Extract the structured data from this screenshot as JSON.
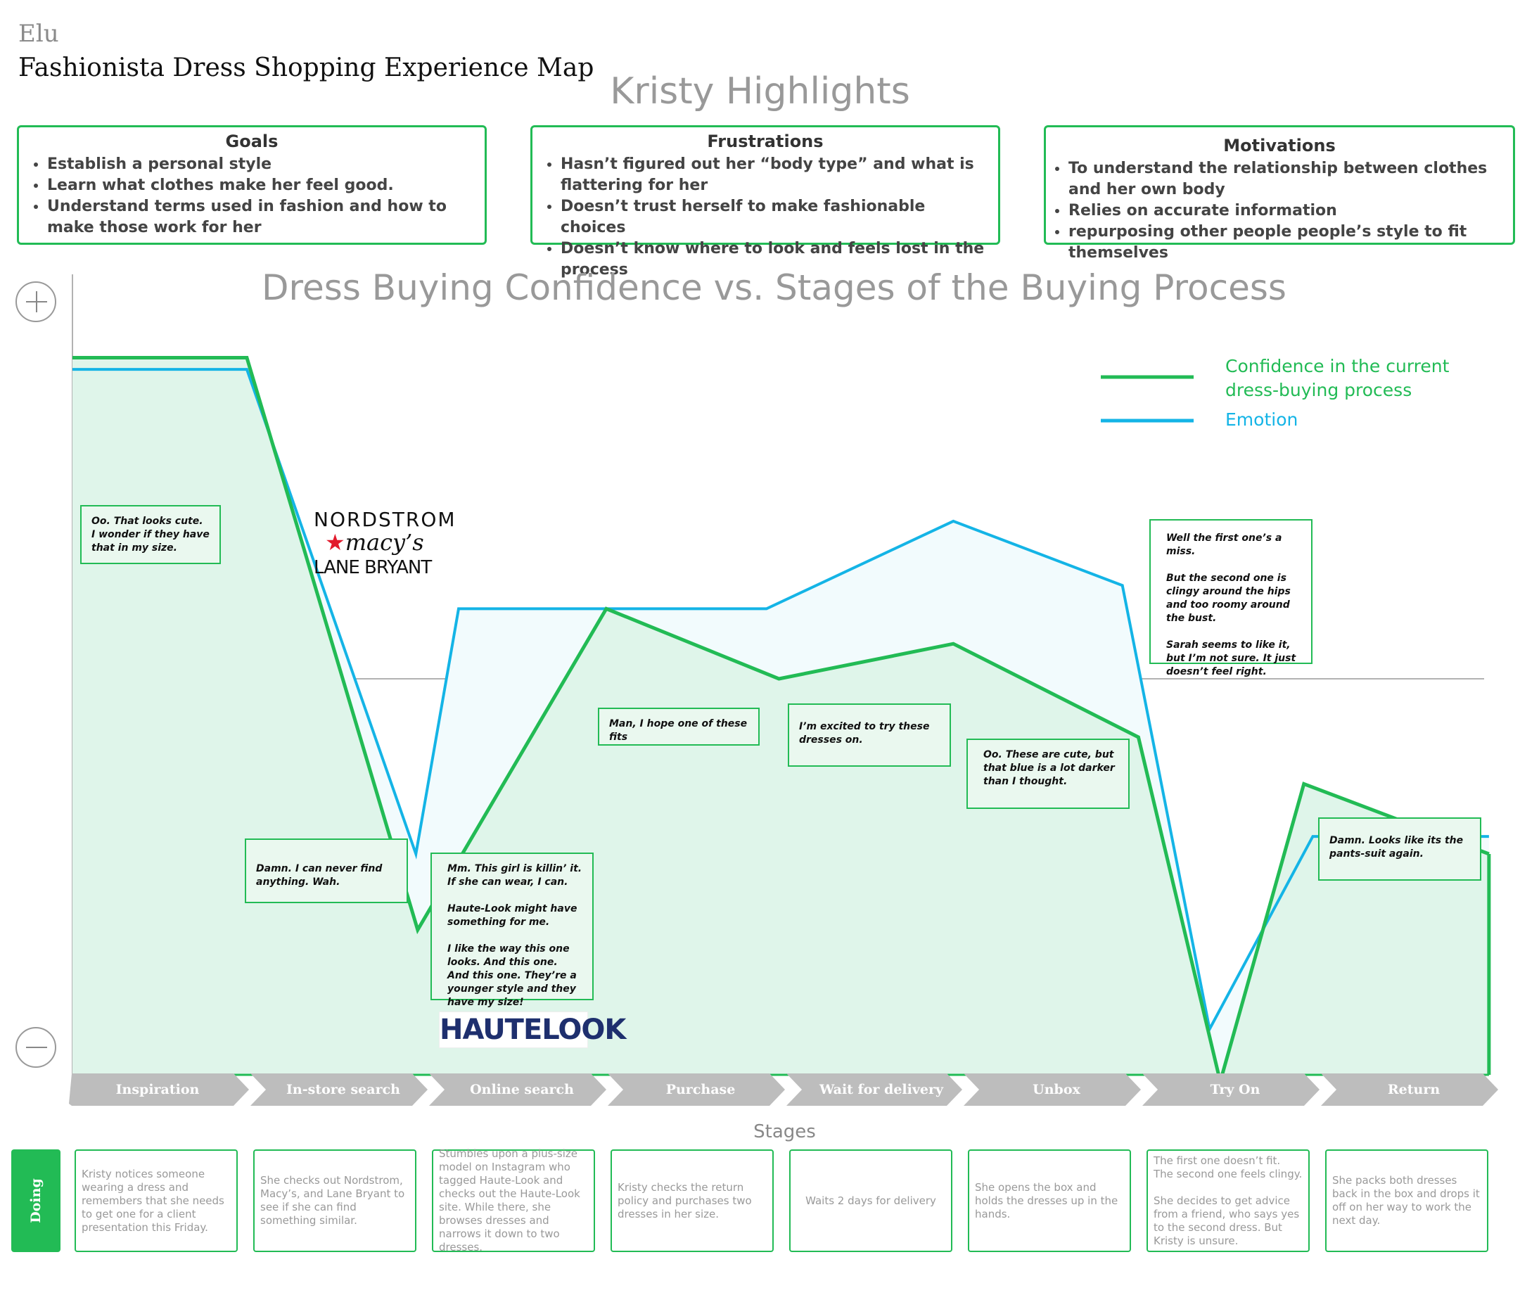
{
  "header": {
    "brand": "Elu",
    "title": "Fashionista Dress Shopping Experience Map",
    "persona_title": "Kristy Highlights"
  },
  "goals": {
    "title": "Goals",
    "items": [
      "Establish a personal style",
      "Learn what clothes make her feel good.",
      "Understand terms used in fashion and how to make those work for her"
    ]
  },
  "frustrations": {
    "title": "Frustrations",
    "items": [
      "Hasn’t figured out her “body type” and what is flattering for her",
      "Doesn’t trust herself to make fashionable choices",
      "Doesn’t know where to look and feels lost in the process"
    ]
  },
  "motivations": {
    "title": "Motivations",
    "items": [
      "To understand the relationship between clothes and her own body",
      "Relies on accurate information",
      "repurposing  other people people’s style to fit themselves"
    ]
  },
  "colors": {
    "confidence": "#22bb55",
    "emotion": "#14b4e6",
    "stage": "#bdbdbd"
  },
  "chart_data": {
    "type": "line",
    "title": "Dress Buying Confidence vs. Stages of the Buying Process",
    "xlabel": "Stages",
    "ylabel": "",
    "y_axis_markers": [
      "+",
      "−"
    ],
    "ylim": [
      -100,
      100
    ],
    "categories": [
      "Inspiration",
      "In-store search",
      "Online search",
      "Purchase",
      "Wait for delivery",
      "Unbox",
      "Try On",
      "Return"
    ],
    "legend_position": "top-right",
    "series": [
      {
        "name": "Confidence in the current dress-buying process",
        "x": [
          0,
          0.98,
          1.94,
          3.0,
          3.97,
          4.95,
          5.99,
          6.45,
          6.92,
          7.96
        ],
        "y": [
          55,
          55,
          -43,
          12,
          0,
          6,
          -10,
          -69,
          -18,
          -30
        ]
      },
      {
        "name": "Emotion",
        "x": [
          0,
          0.98,
          1.93,
          2.17,
          3.9,
          4.95,
          5.9,
          6.39,
          6.97,
          7.96
        ],
        "y": [
          53,
          53,
          -30,
          12,
          12,
          27,
          16,
          -60,
          -27,
          -27
        ]
      }
    ],
    "annotations": [
      "Oo. That looks cute. I wonder if they have that in my size.",
      "Damn. I can never find anything. Wah.",
      "Mm. This girl is killin’ it. If she can wear, I can.\n\nHaute-Look might have something for me.\n\nI like the way this one looks. And this one. And this one. They’re a younger style and they have my size!",
      "Man, I hope one of these fits",
      "I’m excited to try these dresses on.",
      "Oo. These are cute, but that blue is a lot darker than I thought.",
      "Well the first one’s a miss.\n\nBut the second one is clingy around the hips and too roomy around the bust.\n\nSarah seems to like it, but I’m not sure. It just doesn’t feel right.",
      "Damn. Looks like its the pants-suit again."
    ]
  },
  "brands": {
    "nordstrom": "NORDSTROM",
    "macys": "macy’s",
    "lane_bryant": "LANE BRYANT",
    "hautelook": "HAUTELOOK"
  },
  "doing": {
    "label": "Doing",
    "items": [
      "Kristy notices someone wearing a dress and remembers that she needs to get one for a client presentation this Friday.",
      "She checks out Nordstrom, Macy’s, and Lane Bryant to see if she can find something similar.",
      "Stumbles upon a plus-size model on Instagram who tagged Haute-Look and checks out the Haute-Look site. While there, she browses dresses and narrows it down to two dresses.",
      "Kristy checks the return policy and purchases two dresses in her size.",
      "Waits 2 days for delivery",
      "She opens the box and holds the dresses up in the hands.",
      "The first one doesn’t fit. The second one feels clingy.\n\nShe decides to get advice from a friend, who says yes to the second dress. But Kristy is unsure.",
      "She packs both dresses back in the box and drops it off on her way to work the next day."
    ]
  }
}
